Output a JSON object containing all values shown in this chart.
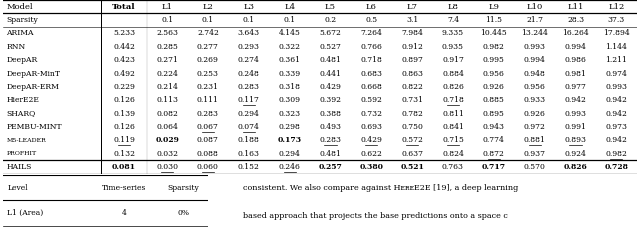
{
  "headers": [
    "Model",
    "Total",
    "L1",
    "L2",
    "L3",
    "L4",
    "L5",
    "L6",
    "L7",
    "L8",
    "L9",
    "L10",
    "L11",
    "L12"
  ],
  "sparsity_row": [
    "Sparsity",
    "",
    "0.1",
    "0.1",
    "0.1",
    "0.1",
    "0.2",
    "0.5",
    "3.1",
    "7.4",
    "11.5",
    "21.7",
    "28.3",
    "37.3"
  ],
  "rows": [
    [
      "ARIMA",
      "5.233",
      "2.563",
      "2.742",
      "3.643",
      "4.145",
      "5.672",
      "7.264",
      "7.984",
      "9.335",
      "10.445",
      "13.244",
      "16.264",
      "17.894"
    ],
    [
      "RNN",
      "0.442",
      "0.285",
      "0.277",
      "0.293",
      "0.322",
      "0.527",
      "0.766",
      "0.912",
      "0.935",
      "0.982",
      "0.993",
      "0.994",
      "1.144"
    ],
    [
      "DeepAR",
      "0.423",
      "0.271",
      "0.269",
      "0.274",
      "0.361",
      "0.481",
      "0.718",
      "0.897",
      "0.917",
      "0.995",
      "0.994",
      "0.986",
      "1.211"
    ],
    [
      "DeepAR-MinT",
      "0.492",
      "0.224",
      "0.253",
      "0.248",
      "0.339",
      "0.441",
      "0.683",
      "0.863",
      "0.884",
      "0.956",
      "0.948",
      "0.981",
      "0.974"
    ],
    [
      "DeepAR-ERM",
      "0.229",
      "0.214",
      "0.231",
      "0.283",
      "0.318",
      "0.429",
      "0.668",
      "0.822",
      "0.826",
      "0.926",
      "0.956",
      "0.977",
      "0.993"
    ],
    [
      "HierE2E",
      "0.126",
      "0.113",
      "0.111",
      "0.117",
      "0.309",
      "0.392",
      "0.592",
      "0.731",
      "0.718",
      "0.885",
      "0.933",
      "0.942",
      "0.942"
    ],
    [
      "SHARQ",
      "0.139",
      "0.082",
      "0.283",
      "0.294",
      "0.323",
      "0.388",
      "0.732",
      "0.782",
      "0.811",
      "0.895",
      "0.926",
      "0.993",
      "0.942"
    ],
    [
      "PEMBU-MINT",
      "0.126",
      "0.064",
      "0.067",
      "0.074",
      "0.298",
      "0.493",
      "0.693",
      "0.750",
      "0.841",
      "0.943",
      "0.972",
      "0.991",
      "0.973"
    ],
    [
      "M5-Leader",
      "0.119",
      "0.029",
      "0.087",
      "0.188",
      "0.173",
      "0.283",
      "0.429",
      "0.572",
      "0.715",
      "0.774",
      "0.881",
      "0.893",
      "0.942"
    ],
    [
      "ProfHiT",
      "0.132",
      "0.032",
      "0.088",
      "0.163",
      "0.294",
      "0.481",
      "0.622",
      "0.637",
      "0.824",
      "0.872",
      "0.937",
      "0.924",
      "0.982"
    ],
    [
      "HAILS",
      "0.081",
      "0.030",
      "0.060",
      "0.152",
      "0.246",
      "0.257",
      "0.380",
      "0.521",
      "0.763",
      "0.717",
      "0.570",
      "0.826",
      "0.728"
    ]
  ],
  "bold_cells": {
    "HAILS": [
      "Total",
      "L5",
      "L6",
      "L7",
      "L11",
      "L12"
    ],
    "M5-Leader": [
      "L1",
      "L4"
    ],
    "HAILS_also": [
      "L9"
    ]
  },
  "underline_cells": {
    "HAILS": [
      "L1",
      "L2",
      "L4"
    ],
    "HierE2E": [
      "L3",
      "L8"
    ],
    "PEMBU-MINT": [
      "L2",
      "L3"
    ],
    "M5-Leader": [
      "Total",
      "L5",
      "L6",
      "L7",
      "L8",
      "L10",
      "L11"
    ],
    "ProfHiT": [
      "L9",
      "L12"
    ]
  },
  "smallcaps_models": [
    "M5-Leader",
    "ProfHiT"
  ],
  "small_table_headers": [
    "Level",
    "Time-series",
    "Sparsity"
  ],
  "small_table_rows": [
    [
      "L1 (Area)",
      "4",
      "0%"
    ]
  ],
  "right_text_line1": "consistent. We also compare against HᴇʀᴇE2E [19], a deep learning",
  "right_text_line2": "based approach that projects the base predictions onto a space c"
}
